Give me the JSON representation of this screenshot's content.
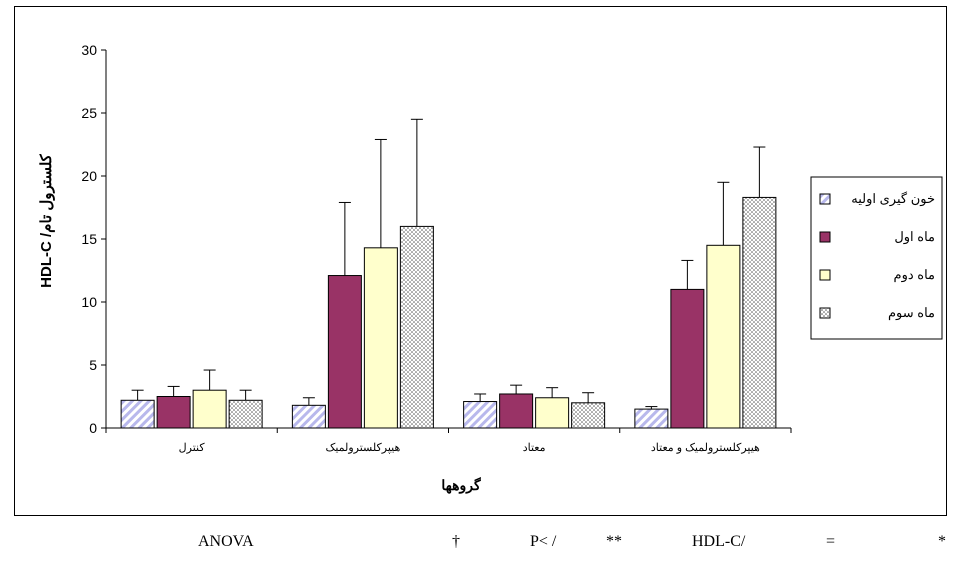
{
  "chart_data": {
    "type": "bar",
    "ylabel": "HDL-C /کلسترول تام",
    "xlabel": "گروهها",
    "categories": [
      "کنترل",
      "هیپرکلسترولمیک",
      "معتاد",
      "هیپرکلسترولمیک و معتاد"
    ],
    "yticks": [
      "0",
      "5",
      "10",
      "15",
      "20",
      "25",
      "30"
    ],
    "ylim": [
      0,
      30
    ],
    "grid": false,
    "legend_position": "right",
    "series": [
      {
        "name": "خون گیری اولیه",
        "values": [
          2.2,
          1.8,
          2.1,
          1.5
        ],
        "errors": [
          0.8,
          0.6,
          0.6,
          0.2
        ],
        "pattern": "diagonal",
        "color": "#c8c8ee"
      },
      {
        "name": "ماه اول",
        "values": [
          2.5,
          12.1,
          2.7,
          11.0
        ],
        "errors": [
          0.8,
          5.8,
          0.7,
          2.3
        ],
        "pattern": "solid",
        "color": "#993366"
      },
      {
        "name": "ماه دوم",
        "values": [
          3.0,
          14.3,
          2.4,
          14.5
        ],
        "errors": [
          1.6,
          8.6,
          0.8,
          5.0
        ],
        "pattern": "solid",
        "color": "#ffffcc"
      },
      {
        "name": "ماه سوم",
        "values": [
          2.2,
          16.0,
          2.0,
          18.3
        ],
        "errors": [
          0.8,
          8.5,
          0.8,
          4.0
        ],
        "pattern": "dots",
        "color": "#ffffff"
      }
    ]
  },
  "footnote": {
    "anova": "ANOVA",
    "dagger": "†",
    "p_less": "P< /",
    "double_star": "**",
    "hdl_ratio": "HDL-C/",
    "equals": "=",
    "star": "*"
  }
}
